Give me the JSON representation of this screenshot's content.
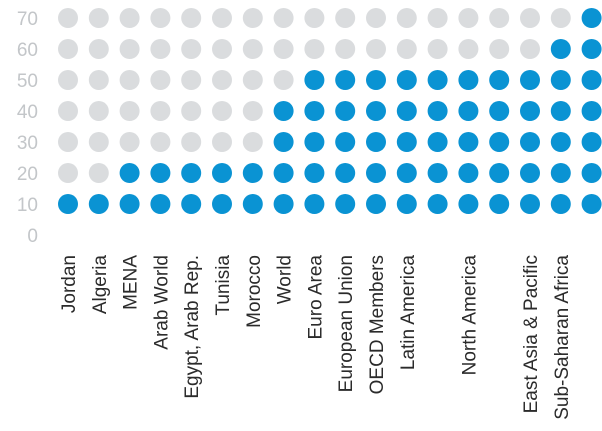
{
  "chart_data": {
    "type": "scatter",
    "title": "",
    "xlabel": "",
    "ylabel": "",
    "y_ticks": [
      0,
      10,
      20,
      30,
      40,
      50,
      60,
      70
    ],
    "ylim": [
      0,
      70
    ],
    "grid": false,
    "categories": [
      "Jordan",
      "Algeria",
      "MENA",
      "Arab World",
      "Egypt, Arab Rep.",
      "Tunisia",
      "Morocco",
      "World",
      "Euro Area",
      "European Union",
      "OECD Members",
      "Latin America",
      "",
      "North America",
      "",
      "East Asia & Pacific",
      "Sub-Saharan Africa",
      ""
    ],
    "values": [
      10,
      10,
      20,
      20,
      20,
      20,
      20,
      40,
      50,
      50,
      50,
      50,
      50,
      50,
      50,
      50,
      60,
      70
    ],
    "colors": {
      "filled": "#0a93d3",
      "empty": "#dadcde",
      "tick": "#c3c6c9",
      "label": "#2b2b2b"
    }
  }
}
